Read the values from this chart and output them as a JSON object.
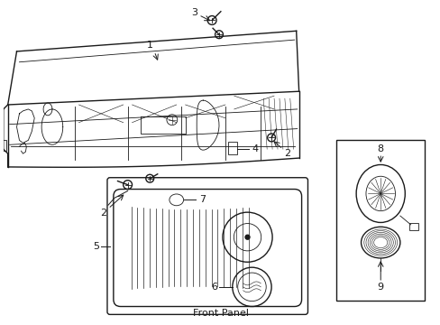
{
  "title": "Front Panel",
  "background_color": "#ffffff",
  "line_color": "#1a1a1a",
  "fig_width": 4.89,
  "fig_height": 3.6,
  "dpi": 100
}
